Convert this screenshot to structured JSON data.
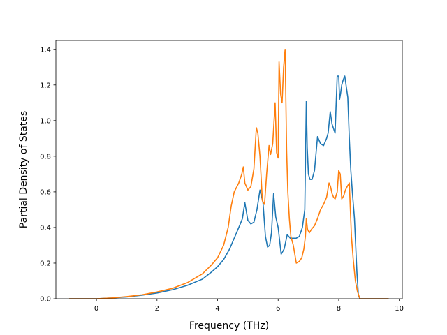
{
  "chart_data": {
    "type": "line",
    "xlabel": "Frequency (THz)",
    "ylabel": "Partial Density of States",
    "xlim": [
      -1.34,
      10.1
    ],
    "ylim": [
      0.0,
      1.45
    ],
    "x_ticks": [
      0,
      2,
      4,
      6,
      8,
      10
    ],
    "x_tick_labels": [
      "0",
      "2",
      "4",
      "6",
      "8",
      "10"
    ],
    "y_ticks": [
      0.0,
      0.2,
      0.4,
      0.6,
      0.8,
      1.0,
      1.2,
      1.4
    ],
    "y_tick_labels": [
      "0.0",
      "0.2",
      "0.4",
      "0.6",
      "0.8",
      "1.0",
      "1.2",
      "1.4"
    ],
    "grid": false,
    "colors": [
      "#1f77b4",
      "#ff7f0e"
    ],
    "series": [
      {
        "color": "#1f77b4",
        "x": [
          -0.9,
          0.0,
          0.5,
          1.0,
          1.5,
          2.0,
          2.5,
          3.0,
          3.5,
          3.8,
          4.0,
          4.2,
          4.4,
          4.5,
          4.65,
          4.75,
          4.82,
          4.9,
          5.0,
          5.1,
          5.2,
          5.3,
          5.4,
          5.5,
          5.58,
          5.65,
          5.72,
          5.78,
          5.85,
          5.92,
          6.0,
          6.1,
          6.2,
          6.3,
          6.4,
          6.5,
          6.6,
          6.7,
          6.8,
          6.88,
          6.93,
          6.96,
          7.0,
          7.05,
          7.12,
          7.2,
          7.3,
          7.4,
          7.5,
          7.6,
          7.65,
          7.72,
          7.78,
          7.82,
          7.88,
          7.95,
          8.0,
          8.03,
          8.06,
          8.1,
          8.15,
          8.2,
          8.3,
          8.35,
          8.4,
          8.45,
          8.52,
          8.6,
          8.65,
          8.7,
          8.75,
          8.78,
          8.8,
          9.0,
          9.3,
          9.65
        ],
        "y": [
          0.0,
          0.0,
          0.004,
          0.01,
          0.02,
          0.032,
          0.05,
          0.075,
          0.11,
          0.15,
          0.18,
          0.22,
          0.28,
          0.32,
          0.38,
          0.42,
          0.45,
          0.54,
          0.44,
          0.42,
          0.43,
          0.5,
          0.61,
          0.54,
          0.35,
          0.29,
          0.3,
          0.37,
          0.59,
          0.46,
          0.4,
          0.25,
          0.28,
          0.36,
          0.34,
          0.34,
          0.34,
          0.35,
          0.4,
          0.5,
          1.11,
          0.85,
          0.7,
          0.67,
          0.67,
          0.72,
          0.91,
          0.87,
          0.86,
          0.9,
          0.93,
          1.05,
          0.98,
          0.96,
          0.93,
          1.25,
          1.25,
          1.12,
          1.15,
          1.2,
          1.23,
          1.25,
          1.13,
          0.9,
          0.72,
          0.6,
          0.45,
          0.15,
          0.02,
          0.0,
          0.0,
          0.0,
          0.0,
          0.0,
          0.0,
          0.0
        ]
      },
      {
        "color": "#ff7f0e",
        "x": [
          -0.9,
          0.0,
          0.5,
          1.0,
          1.5,
          2.0,
          2.5,
          3.0,
          3.5,
          3.8,
          4.0,
          4.2,
          4.35,
          4.45,
          4.55,
          4.7,
          4.8,
          4.85,
          4.9,
          5.0,
          5.1,
          5.2,
          5.28,
          5.33,
          5.4,
          5.48,
          5.55,
          5.62,
          5.7,
          5.75,
          5.82,
          5.9,
          5.95,
          6.0,
          6.03,
          6.08,
          6.13,
          6.18,
          6.23,
          6.28,
          6.32,
          6.37,
          6.42,
          6.5,
          6.6,
          6.7,
          6.78,
          6.85,
          6.9,
          6.93,
          6.97,
          7.03,
          7.1,
          7.2,
          7.3,
          7.4,
          7.5,
          7.6,
          7.68,
          7.73,
          7.78,
          7.83,
          7.88,
          7.95,
          8.0,
          8.05,
          8.1,
          8.17,
          8.22,
          8.28,
          8.35,
          8.42,
          8.48,
          8.55,
          8.62,
          8.7,
          8.75,
          8.8,
          9.0,
          9.3,
          9.65
        ],
        "y": [
          0.0,
          0.0,
          0.004,
          0.012,
          0.022,
          0.038,
          0.058,
          0.09,
          0.14,
          0.19,
          0.23,
          0.3,
          0.4,
          0.52,
          0.6,
          0.65,
          0.7,
          0.74,
          0.65,
          0.61,
          0.63,
          0.73,
          0.96,
          0.93,
          0.8,
          0.55,
          0.53,
          0.7,
          0.86,
          0.81,
          0.87,
          1.1,
          0.82,
          0.79,
          1.33,
          1.15,
          1.1,
          1.3,
          1.4,
          0.83,
          0.6,
          0.45,
          0.35,
          0.3,
          0.2,
          0.21,
          0.23,
          0.28,
          0.35,
          0.45,
          0.39,
          0.37,
          0.39,
          0.41,
          0.45,
          0.5,
          0.53,
          0.57,
          0.65,
          0.63,
          0.59,
          0.57,
          0.56,
          0.6,
          0.72,
          0.7,
          0.56,
          0.58,
          0.61,
          0.63,
          0.65,
          0.35,
          0.22,
          0.1,
          0.04,
          0.0,
          0.0,
          0.0,
          0.0,
          0.0,
          0.0
        ]
      }
    ]
  }
}
